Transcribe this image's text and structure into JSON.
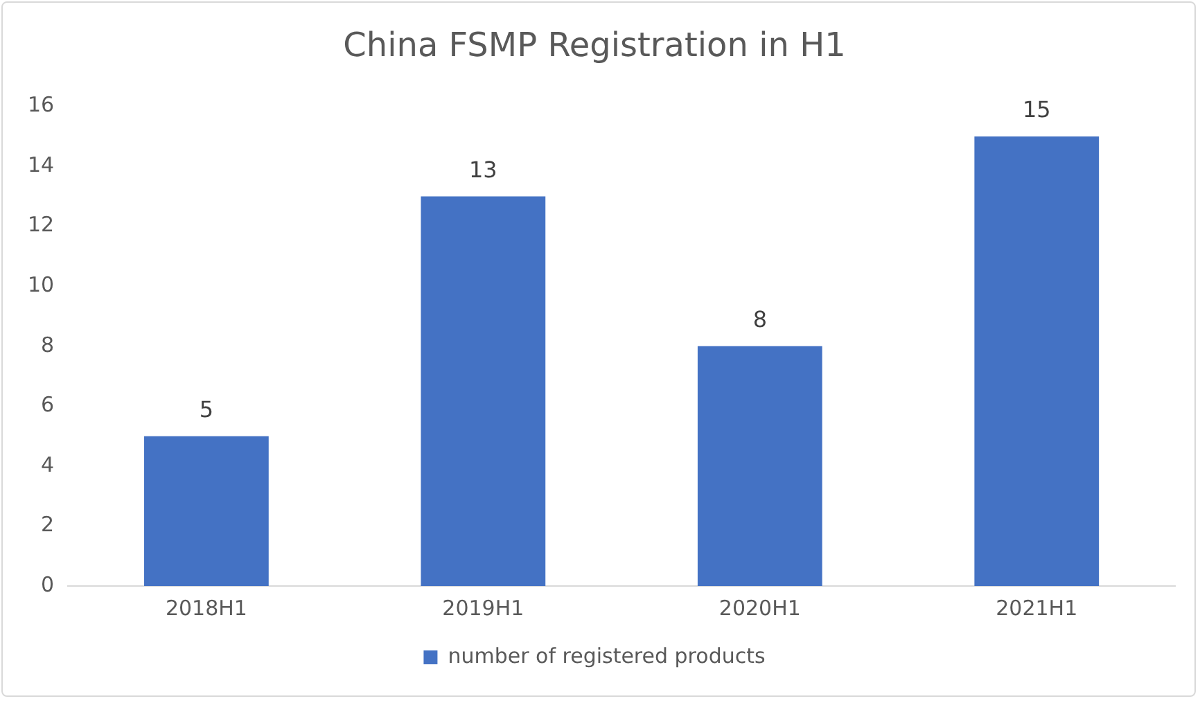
{
  "chart_data": {
    "type": "bar",
    "title": "China FSMP Registration in H1",
    "categories": [
      "2018H1",
      "2019H1",
      "2020H1",
      "2021H1"
    ],
    "series": [
      {
        "name": "number of registered products",
        "color": "#4472c4",
        "values": [
          5,
          13,
          8,
          15
        ]
      }
    ],
    "ylim": [
      0,
      16
    ],
    "yticks": [
      0,
      2,
      4,
      6,
      8,
      10,
      12,
      14,
      16
    ],
    "grid": false,
    "legend": "bottom",
    "data_labels": true
  }
}
